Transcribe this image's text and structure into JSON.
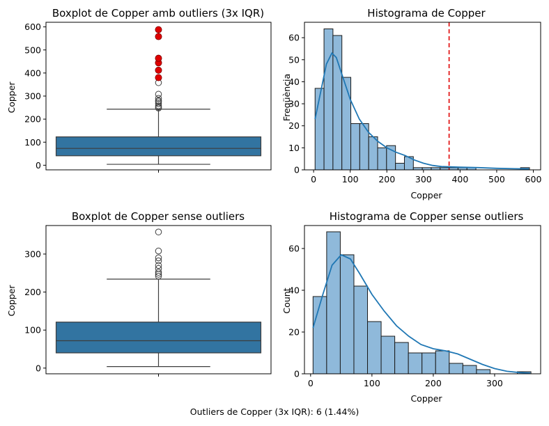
{
  "footer_text": "Outliers de Copper (3x IQR): 6 (1.44%)",
  "colors": {
    "box_fill": "#3274a1",
    "hist_fill": "#8fb9da",
    "kde_line": "#1f77b4",
    "outlier_red": "#e00000",
    "vline": "#e00000"
  },
  "chart_data": [
    {
      "type": "boxplot",
      "title": "Boxplot de Copper amb outliers (3x IQR)",
      "xlabel": "",
      "ylabel": "Copper",
      "ylim": [
        -20,
        620
      ],
      "yticks": [
        0,
        100,
        200,
        300,
        400,
        500,
        600
      ],
      "stats": {
        "whisker_low": 4,
        "q1": 41,
        "median": 73,
        "q3": 123,
        "whisker_high": 243
      },
      "fliers": [
        248,
        252,
        258,
        267,
        275,
        280,
        290,
        308,
        358
      ],
      "extreme_outliers": [
        380,
        412,
        444,
        464,
        558,
        588
      ]
    },
    {
      "type": "histogram",
      "title": "Histograma de Copper",
      "xlabel": "Copper",
      "ylabel": "Freqüència",
      "xlim": [
        -25,
        620
      ],
      "ylim": [
        0,
        67
      ],
      "xticks": [
        0,
        100,
        200,
        300,
        400,
        500,
        600
      ],
      "yticks": [
        0,
        10,
        20,
        30,
        40,
        50,
        60
      ],
      "bin_edges_start": 4,
      "bin_width": 24.4,
      "counts": [
        37,
        64,
        61,
        42,
        21,
        21,
        15,
        10,
        11,
        3,
        6,
        1,
        1,
        1,
        1,
        1,
        1,
        1,
        0,
        0,
        0,
        0,
        0,
        1
      ],
      "kde": [
        [
          4,
          23
        ],
        [
          20,
          36
        ],
        [
          35,
          48
        ],
        [
          50,
          53
        ],
        [
          62,
          51
        ],
        [
          80,
          42
        ],
        [
          100,
          32
        ],
        [
          125,
          23
        ],
        [
          150,
          17
        ],
        [
          175,
          13
        ],
        [
          200,
          10
        ],
        [
          225,
          8
        ],
        [
          250,
          6.5
        ],
        [
          275,
          4.5
        ],
        [
          300,
          3
        ],
        [
          325,
          2
        ],
        [
          350,
          1.5
        ],
        [
          400,
          1.2
        ],
        [
          450,
          1
        ],
        [
          500,
          0.7
        ],
        [
          550,
          0.5
        ],
        [
          588,
          0.4
        ]
      ],
      "threshold_line": 370
    },
    {
      "type": "boxplot",
      "title": "Boxplot de Copper sense outliers",
      "xlabel": "",
      "ylabel": "Copper",
      "ylim": [
        -15,
        375
      ],
      "yticks": [
        0,
        100,
        200,
        300
      ],
      "stats": {
        "whisker_low": 4,
        "q1": 40,
        "median": 72,
        "q3": 121,
        "whisker_high": 234
      },
      "fliers": [
        242,
        247,
        252,
        262,
        270,
        282,
        290,
        308,
        358
      ]
    },
    {
      "type": "histogram",
      "title": "Histograma de Copper sense outliers",
      "xlabel": "Copper",
      "ylabel": "Count",
      "xlim": [
        -10,
        375
      ],
      "ylim": [
        0,
        71
      ],
      "xticks": [
        0,
        100,
        200,
        300
      ],
      "yticks": [
        0,
        20,
        40,
        60
      ],
      "bin_edges_start": 4,
      "bin_width": 22.2,
      "counts": [
        37,
        68,
        57,
        42,
        25,
        18,
        15,
        10,
        10,
        11,
        5,
        4,
        2,
        0,
        0,
        1
      ],
      "kde": [
        [
          4,
          22
        ],
        [
          20,
          38
        ],
        [
          35,
          52
        ],
        [
          50,
          57
        ],
        [
          65,
          55
        ],
        [
          80,
          48
        ],
        [
          100,
          38
        ],
        [
          120,
          30
        ],
        [
          140,
          23
        ],
        [
          160,
          18
        ],
        [
          180,
          14
        ],
        [
          200,
          12
        ],
        [
          220,
          11
        ],
        [
          240,
          9.5
        ],
        [
          260,
          7
        ],
        [
          280,
          4.5
        ],
        [
          300,
          2.5
        ],
        [
          320,
          1.2
        ],
        [
          340,
          0.6
        ],
        [
          358,
          0.3
        ]
      ]
    }
  ]
}
